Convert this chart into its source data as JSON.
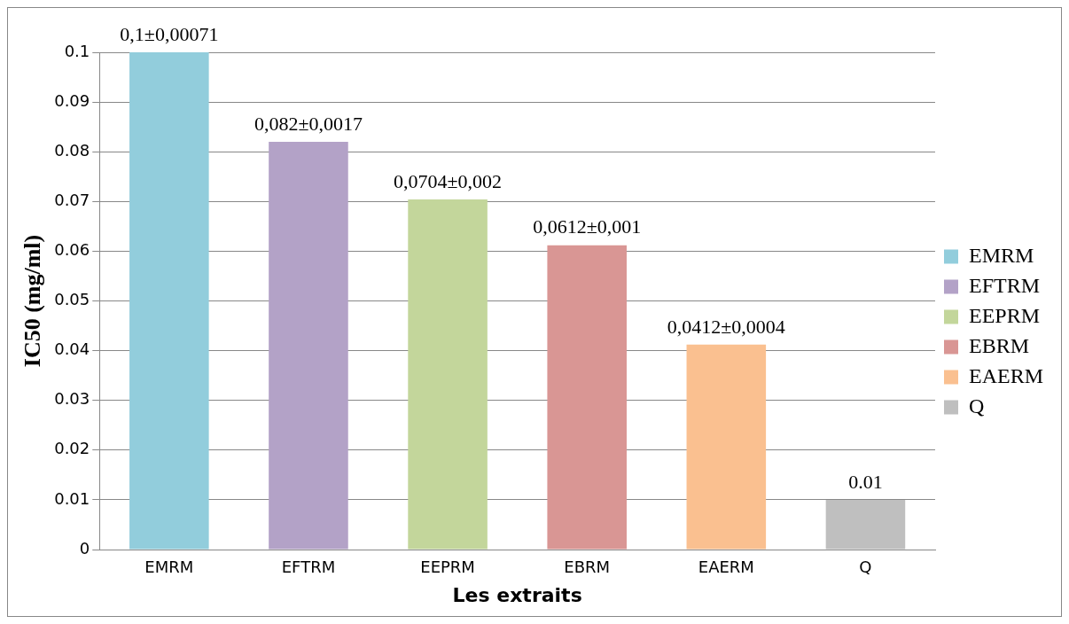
{
  "chart_data": {
    "type": "bar",
    "xlabel": "Les extraits",
    "ylabel": "IC50 (mg/ml)",
    "categories": [
      "EMRM",
      "EFTRM",
      "EEPRM",
      "EBRM",
      "EAERM",
      "Q"
    ],
    "series": [
      {
        "name": "EMRM",
        "color": "#92cddc",
        "values": [
          0.1,
          null,
          null,
          null,
          null,
          null
        ],
        "value_labels": [
          "0,1±0,00071",
          null,
          null,
          null,
          null,
          null
        ]
      },
      {
        "name": "EFTRM",
        "color": "#b3a2c7",
        "values": [
          null,
          0.082,
          null,
          null,
          null,
          null
        ],
        "value_labels": [
          null,
          "0,082±0,0017",
          null,
          null,
          null,
          null
        ]
      },
      {
        "name": "EEPRM",
        "color": "#c3d69b",
        "values": [
          null,
          null,
          0.0704,
          null,
          null,
          null
        ],
        "value_labels": [
          null,
          null,
          "0,0704±0,002",
          null,
          null,
          null
        ]
      },
      {
        "name": "EBRM",
        "color": "#d99694",
        "values": [
          null,
          null,
          null,
          0.0612,
          null,
          null
        ],
        "value_labels": [
          null,
          null,
          null,
          "0,0612±0,001",
          null,
          null
        ]
      },
      {
        "name": "EAERM",
        "color": "#fac090",
        "values": [
          null,
          null,
          null,
          null,
          0.0412,
          null
        ],
        "value_labels": [
          null,
          null,
          null,
          null,
          "0,0412±0,0004",
          null
        ]
      },
      {
        "name": "Q",
        "color": "#bfbfbf",
        "values": [
          null,
          null,
          null,
          null,
          null,
          0.01
        ],
        "value_labels": [
          null,
          null,
          null,
          null,
          null,
          "0.01"
        ]
      }
    ],
    "ylim": [
      0,
      0.1
    ],
    "yticks": [
      0,
      0.01,
      0.02,
      0.03,
      0.04,
      0.05,
      0.06,
      0.07,
      0.08,
      0.09,
      0.1
    ],
    "grid": "y",
    "legend": "right"
  }
}
